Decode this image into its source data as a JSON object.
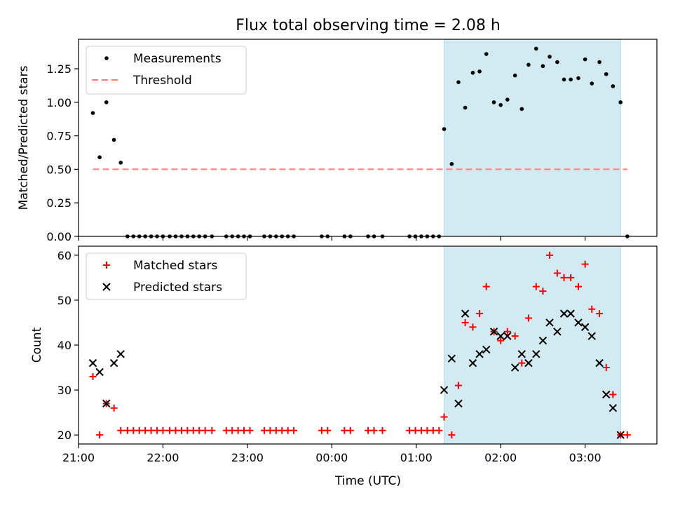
{
  "title": "Flux total observing time = 2.08 h",
  "colors": {
    "measurement": "#000000",
    "threshold": "#ff7f7f",
    "matched": "#ff0000",
    "predicted": "#000000",
    "shade": "#add8e6"
  },
  "shared_x": {
    "label": "Time (UTC)",
    "range_hours": [
      -3.0,
      3.85
    ],
    "ticks": [
      {
        "label": "21:00",
        "value": -3.0
      },
      {
        "label": "22:00",
        "value": -2.0
      },
      {
        "label": "23:00",
        "value": -1.0
      },
      {
        "label": "00:00",
        "value": 0.0
      },
      {
        "label": "01:00",
        "value": 1.0
      },
      {
        "label": "02:00",
        "value": 2.0
      },
      {
        "label": "03:00",
        "value": 3.0
      }
    ],
    "shaded_span": [
      1.33,
      3.42
    ]
  },
  "chart_data": [
    {
      "type": "scatter",
      "ylabel": "Matched/Predicted stars",
      "ylim": [
        0,
        1.47
      ],
      "yticks": [
        "0.00",
        "0.25",
        "0.50",
        "0.75",
        "1.00",
        "1.25"
      ],
      "legend_position": "top-left",
      "threshold": {
        "name": "Threshold",
        "y": 0.5,
        "x_range": [
          -2.83,
          3.5
        ]
      },
      "series": [
        {
          "name": "Measurements",
          "points": [
            [
              -2.83,
              0.92
            ],
            [
              -2.75,
              0.59
            ],
            [
              -2.67,
              1.0
            ],
            [
              -2.58,
              0.72
            ],
            [
              -2.5,
              0.55
            ],
            [
              -2.42,
              0.0
            ],
            [
              -2.35,
              0.0
            ],
            [
              -2.28,
              0.0
            ],
            [
              -2.21,
              0.0
            ],
            [
              -2.14,
              0.0
            ],
            [
              -2.07,
              0.0
            ],
            [
              -2.0,
              0.0
            ],
            [
              -1.92,
              0.0
            ],
            [
              -1.85,
              0.0
            ],
            [
              -1.78,
              0.0
            ],
            [
              -1.71,
              0.0
            ],
            [
              -1.64,
              0.0
            ],
            [
              -1.57,
              0.0
            ],
            [
              -1.5,
              0.0
            ],
            [
              -1.42,
              0.0
            ],
            [
              -1.25,
              0.0
            ],
            [
              -1.18,
              0.0
            ],
            [
              -1.11,
              0.0
            ],
            [
              -1.04,
              0.0
            ],
            [
              -0.97,
              0.0
            ],
            [
              -0.8,
              0.0
            ],
            [
              -0.73,
              0.0
            ],
            [
              -0.66,
              0.0
            ],
            [
              -0.59,
              0.0
            ],
            [
              -0.52,
              0.0
            ],
            [
              -0.45,
              0.0
            ],
            [
              -0.12,
              0.0
            ],
            [
              -0.05,
              0.0
            ],
            [
              0.15,
              0.0
            ],
            [
              0.22,
              0.0
            ],
            [
              0.43,
              0.0
            ],
            [
              0.5,
              0.0
            ],
            [
              0.6,
              0.0
            ],
            [
              0.92,
              0.0
            ],
            [
              0.99,
              0.0
            ],
            [
              1.06,
              0.0
            ],
            [
              1.13,
              0.0
            ],
            [
              1.2,
              0.0
            ],
            [
              1.27,
              0.0
            ],
            [
              1.33,
              0.8
            ],
            [
              1.42,
              0.54
            ],
            [
              1.5,
              1.15
            ],
            [
              1.58,
              0.96
            ],
            [
              1.67,
              1.22
            ],
            [
              1.75,
              1.23
            ],
            [
              1.83,
              1.36
            ],
            [
              1.92,
              1.0
            ],
            [
              2.0,
              0.98
            ],
            [
              2.08,
              1.02
            ],
            [
              2.17,
              1.2
            ],
            [
              2.25,
              0.95
            ],
            [
              2.33,
              1.28
            ],
            [
              2.42,
              1.4
            ],
            [
              2.5,
              1.27
            ],
            [
              2.58,
              1.34
            ],
            [
              2.67,
              1.3
            ],
            [
              2.75,
              1.17
            ],
            [
              2.83,
              1.17
            ],
            [
              2.92,
              1.18
            ],
            [
              3.0,
              1.32
            ],
            [
              3.08,
              1.14
            ],
            [
              3.17,
              1.3
            ],
            [
              3.25,
              1.21
            ],
            [
              3.33,
              1.12
            ],
            [
              3.42,
              1.0
            ],
            [
              3.5,
              0.0
            ]
          ]
        }
      ]
    },
    {
      "type": "scatter",
      "ylabel": "Count",
      "ylim": [
        18,
        62
      ],
      "yticks": [
        "20",
        "30",
        "40",
        "50",
        "60"
      ],
      "legend_position": "top-left",
      "series": [
        {
          "name": "Matched stars",
          "marker": "+",
          "points": [
            [
              -2.83,
              33
            ],
            [
              -2.75,
              20
            ],
            [
              -2.67,
              27
            ],
            [
              -2.58,
              26
            ],
            [
              -2.5,
              21
            ],
            [
              -2.42,
              21
            ],
            [
              -2.35,
              21
            ],
            [
              -2.28,
              21
            ],
            [
              -2.21,
              21
            ],
            [
              -2.14,
              21
            ],
            [
              -2.07,
              21
            ],
            [
              -2.0,
              21
            ],
            [
              -1.92,
              21
            ],
            [
              -1.85,
              21
            ],
            [
              -1.78,
              21
            ],
            [
              -1.71,
              21
            ],
            [
              -1.64,
              21
            ],
            [
              -1.57,
              21
            ],
            [
              -1.5,
              21
            ],
            [
              -1.42,
              21
            ],
            [
              -1.25,
              21
            ],
            [
              -1.18,
              21
            ],
            [
              -1.11,
              21
            ],
            [
              -1.04,
              21
            ],
            [
              -0.97,
              21
            ],
            [
              -0.8,
              21
            ],
            [
              -0.73,
              21
            ],
            [
              -0.66,
              21
            ],
            [
              -0.59,
              21
            ],
            [
              -0.52,
              21
            ],
            [
              -0.45,
              21
            ],
            [
              -0.12,
              21
            ],
            [
              -0.05,
              21
            ],
            [
              0.15,
              21
            ],
            [
              0.22,
              21
            ],
            [
              0.43,
              21
            ],
            [
              0.5,
              21
            ],
            [
              0.6,
              21
            ],
            [
              0.92,
              21
            ],
            [
              0.99,
              21
            ],
            [
              1.06,
              21
            ],
            [
              1.13,
              21
            ],
            [
              1.2,
              21
            ],
            [
              1.27,
              21
            ],
            [
              1.33,
              24
            ],
            [
              1.42,
              20
            ],
            [
              1.5,
              31
            ],
            [
              1.58,
              45
            ],
            [
              1.67,
              44
            ],
            [
              1.75,
              47
            ],
            [
              1.83,
              53
            ],
            [
              1.92,
              43
            ],
            [
              2.0,
              41
            ],
            [
              2.08,
              43
            ],
            [
              2.17,
              42
            ],
            [
              2.25,
              36
            ],
            [
              2.33,
              46
            ],
            [
              2.42,
              53
            ],
            [
              2.5,
              52
            ],
            [
              2.58,
              60
            ],
            [
              2.67,
              56
            ],
            [
              2.75,
              55
            ],
            [
              2.83,
              55
            ],
            [
              2.92,
              53
            ],
            [
              3.0,
              58
            ],
            [
              3.08,
              48
            ],
            [
              3.17,
              47
            ],
            [
              3.25,
              35
            ],
            [
              3.33,
              29
            ],
            [
              3.42,
              20
            ],
            [
              3.5,
              20
            ]
          ]
        },
        {
          "name": "Predicted stars",
          "marker": "x",
          "points": [
            [
              -2.83,
              36
            ],
            [
              -2.75,
              34
            ],
            [
              -2.67,
              27
            ],
            [
              -2.58,
              36
            ],
            [
              -2.5,
              38
            ],
            [
              1.33,
              30
            ],
            [
              1.42,
              37
            ],
            [
              1.5,
              27
            ],
            [
              1.58,
              47
            ],
            [
              1.67,
              36
            ],
            [
              1.75,
              38
            ],
            [
              1.83,
              39
            ],
            [
              1.92,
              43
            ],
            [
              2.0,
              42
            ],
            [
              2.08,
              42
            ],
            [
              2.17,
              35
            ],
            [
              2.25,
              38
            ],
            [
              2.33,
              36
            ],
            [
              2.42,
              38
            ],
            [
              2.5,
              41
            ],
            [
              2.58,
              45
            ],
            [
              2.67,
              43
            ],
            [
              2.75,
              47
            ],
            [
              2.83,
              47
            ],
            [
              2.92,
              45
            ],
            [
              3.0,
              44
            ],
            [
              3.08,
              42
            ],
            [
              3.17,
              36
            ],
            [
              3.25,
              29
            ],
            [
              3.33,
              26
            ],
            [
              3.42,
              20
            ]
          ]
        }
      ]
    }
  ]
}
